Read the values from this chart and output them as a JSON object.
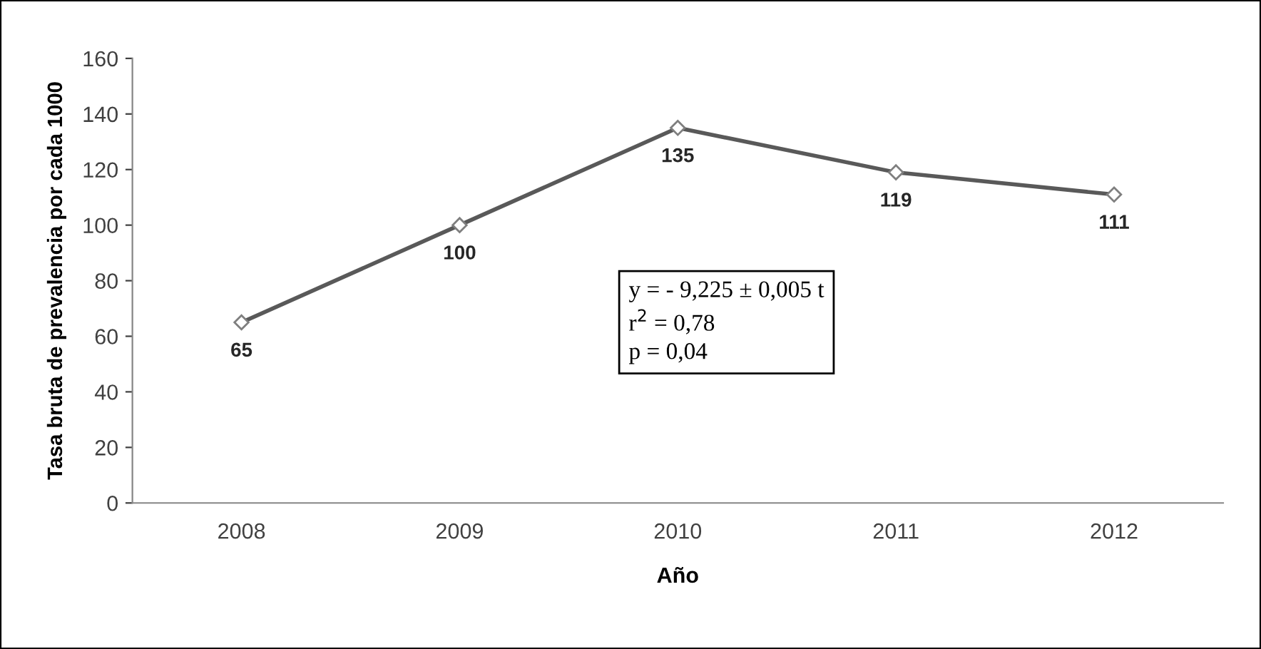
{
  "chart_data": {
    "type": "line",
    "xlabel": "Año",
    "ylabel": "Tasa bruta de prevalencia por cada 1000",
    "categories": [
      "2008",
      "2009",
      "2010",
      "2011",
      "2012"
    ],
    "series": [
      {
        "color": "#595959",
        "values": [
          65,
          100,
          135,
          119,
          111
        ]
      }
    ],
    "ylim": [
      0,
      160
    ],
    "yticks": [
      0,
      20,
      40,
      60,
      80,
      100,
      120,
      140,
      160
    ],
    "grid": false,
    "legend": false,
    "marker": "diamond",
    "line_style": "solid",
    "data_labels": true,
    "annotations": [
      "y = - 9,225 ± 0,005 t\nr$^{2}$ = 0,78\np = 0,04"
    ]
  }
}
